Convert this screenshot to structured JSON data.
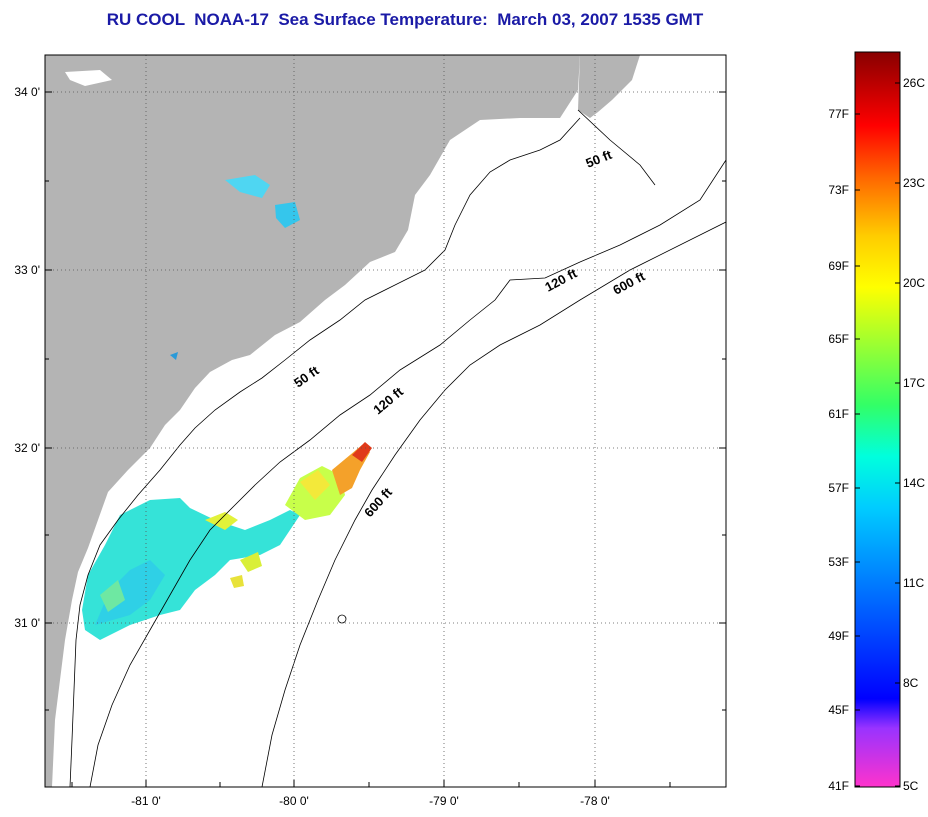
{
  "title": "RU COOL  NOAA-17  Sea Surface Temperature:  March 03, 2007 1535 GMT",
  "lat_labels": [
    "34 0'",
    "33 0'",
    "32 0'",
    "31 0'"
  ],
  "lon_labels": [
    "-81 0'",
    "-80 0'",
    "-79 0'",
    "-78 0'"
  ],
  "contours": [
    "50 ft",
    "50 ft",
    "120 ft",
    "120 ft",
    "600 ft",
    "600 ft"
  ],
  "colorbar": {
    "f_labels": [
      "77F",
      "73F",
      "69F",
      "65F",
      "61F",
      "57F",
      "53F",
      "49F",
      "45F",
      "41F"
    ],
    "c_labels": [
      "26C",
      "23C",
      "20C",
      "17C",
      "14C",
      "11C",
      "8C",
      "5C"
    ]
  },
  "colors": {
    "land": "#b4b4b4",
    "title": "#1a1aa6"
  }
}
